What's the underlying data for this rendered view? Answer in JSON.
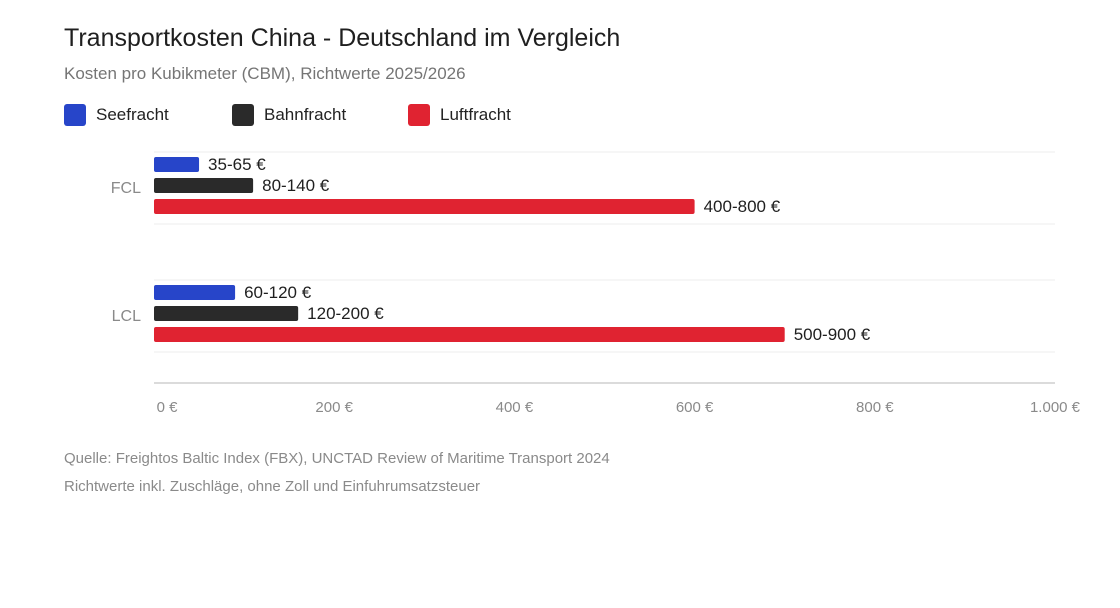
{
  "chart_data": {
    "type": "bar",
    "orientation": "horizontal",
    "title": "Transportkosten China - Deutschland im Vergleich",
    "subtitle": "Kosten pro Kubikmeter (CBM), Richtwerte 2025/2026",
    "categories": [
      "FCL",
      "LCL"
    ],
    "series": [
      {
        "name": "Seefracht",
        "color": "#2745c9",
        "values": [
          50,
          90
        ],
        "labels": [
          "35-65 €",
          "60-120 €"
        ]
      },
      {
        "name": "Bahnfracht",
        "color": "#2a2a2a",
        "values": [
          110,
          160
        ],
        "labels": [
          "80-140 €",
          "120-200 €"
        ]
      },
      {
        "name": "Luftfracht",
        "color": "#e02331",
        "values": [
          600,
          700
        ],
        "labels": [
          "400-800 €",
          "500-900 €"
        ]
      }
    ],
    "xlim": [
      0,
      1000
    ],
    "x_ticks": [
      0,
      200,
      400,
      600,
      800,
      1000
    ],
    "x_tick_labels": [
      "0 €",
      "200 €",
      "400 €",
      "600 €",
      "800 €",
      "1.000 €"
    ],
    "legend_position": "top-left",
    "grid": false
  },
  "footer": {
    "source": "Quelle: Freightos Baltic Index (FBX), UNCTAD Review of Maritime Transport 2024",
    "note": "Richtwerte inkl. Zuschläge, ohne Zoll und Einfuhrumsatzsteuer"
  }
}
